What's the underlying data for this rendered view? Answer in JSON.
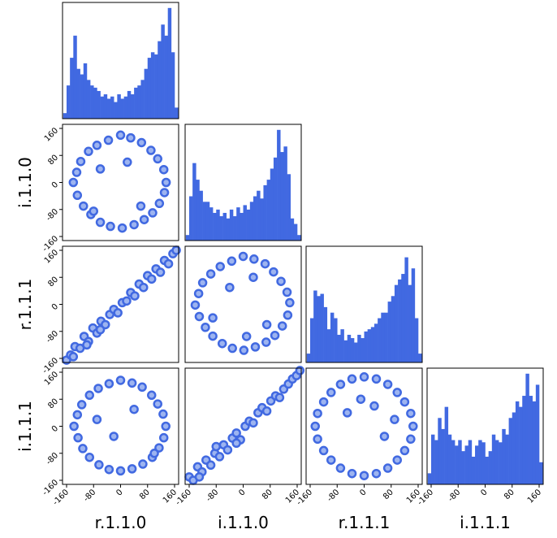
{
  "chart_data": [
    {
      "type": "histogram",
      "color": "#4169e1",
      "bins": [
        -170,
        -160,
        -150,
        -140,
        -130,
        -120,
        -110,
        -100,
        -90,
        -80,
        -70,
        -60,
        -50,
        -40,
        -30,
        -20,
        -10,
        0,
        10,
        20,
        30,
        40,
        50,
        60,
        70,
        80,
        90,
        100,
        110,
        120,
        130,
        140,
        150,
        160,
        170
      ],
      "values": [
        5,
        30,
        55,
        75,
        45,
        40,
        50,
        35,
        30,
        28,
        25,
        20,
        22,
        18,
        20,
        15,
        22,
        18,
        20,
        25,
        22,
        28,
        30,
        35,
        45,
        55,
        60,
        58,
        70,
        85,
        75,
        100,
        60,
        10
      ],
      "xlim": [
        -172,
        172
      ],
      "ylim": [
        0,
        105
      ]
    },
    {
      "type": "scatter",
      "color": "#4169e1",
      "ylabel": "i.1.1.0",
      "xlim": [
        -172,
        172
      ],
      "ylim": [
        -172,
        172
      ],
      "yticks": [
        -160,
        -80,
        0,
        80,
        160
      ],
      "x": [
        135,
        128,
        110,
        90,
        62,
        30,
        0,
        -36,
        -70,
        -95,
        -118,
        -130,
        -140,
        -128,
        -110,
        -88,
        -60,
        -30,
        5,
        40,
        70,
        95,
        115,
        130,
        -60,
        20,
        60,
        -80
      ],
      "y": [
        0,
        38,
        70,
        95,
        118,
        132,
        140,
        125,
        110,
        92,
        62,
        30,
        0,
        -38,
        -70,
        -95,
        -118,
        -130,
        -135,
        -125,
        -110,
        -90,
        -62,
        -30,
        40,
        60,
        -70,
        -85
      ]
    },
    {
      "type": "histogram",
      "color": "#4169e1",
      "bins": [
        -170,
        -160,
        -150,
        -140,
        -130,
        -120,
        -110,
        -100,
        -90,
        -80,
        -70,
        -60,
        -50,
        -40,
        -30,
        -20,
        -10,
        0,
        10,
        20,
        30,
        40,
        50,
        60,
        70,
        80,
        90,
        100,
        110,
        120,
        130,
        140,
        150,
        160,
        170
      ],
      "values": [
        5,
        40,
        70,
        55,
        45,
        35,
        35,
        30,
        25,
        28,
        22,
        25,
        20,
        28,
        22,
        30,
        25,
        32,
        28,
        35,
        40,
        45,
        38,
        50,
        55,
        65,
        75,
        100,
        80,
        85,
        60,
        20,
        15,
        5
      ],
      "xlim": [
        -172,
        172
      ],
      "ylim": [
        0,
        105
      ]
    },
    {
      "type": "scatter",
      "color": "#4169e1",
      "ylabel": "r.1.1.1",
      "xlim": [
        -172,
        172
      ],
      "ylim": [
        -172,
        172
      ],
      "yticks": [
        -160,
        -80,
        0,
        80,
        160
      ],
      "x": [
        -160,
        -148,
        -135,
        -120,
        -108,
        -95,
        -82,
        -70,
        -58,
        -45,
        -32,
        -20,
        -8,
        5,
        18,
        30,
        42,
        55,
        68,
        80,
        92,
        105,
        118,
        130,
        142,
        155,
        165,
        -140,
        -100,
        -60
      ],
      "y": [
        -165,
        -150,
        -125,
        -130,
        -95,
        -110,
        -70,
        -85,
        -50,
        -60,
        -30,
        -15,
        -25,
        5,
        10,
        35,
        25,
        60,
        50,
        85,
        75,
        105,
        95,
        130,
        120,
        150,
        160,
        -155,
        -120,
        -75
      ]
    },
    {
      "type": "scatter",
      "color": "#4169e1",
      "xlim": [
        -172,
        172
      ],
      "ylim": [
        -172,
        172
      ],
      "x": [
        138,
        130,
        112,
        90,
        65,
        32,
        0,
        -34,
        -68,
        -96,
        -120,
        -132,
        -142,
        -130,
        -112,
        -90,
        -62,
        -32,
        2,
        36,
        68,
        94,
        116,
        132,
        -40,
        30,
        70,
        -90,
        10
      ],
      "y": [
        5,
        36,
        68,
        96,
        120,
        134,
        142,
        128,
        112,
        90,
        64,
        32,
        -2,
        -36,
        -68,
        -94,
        -116,
        -130,
        -136,
        -126,
        -112,
        -92,
        -64,
        -32,
        50,
        80,
        -60,
        -40,
        -95
      ]
    },
    {
      "type": "histogram",
      "color": "#4169e1",
      "bins": [
        -170,
        -160,
        -150,
        -140,
        -130,
        -120,
        -110,
        -100,
        -90,
        -80,
        -70,
        -60,
        -50,
        -40,
        -30,
        -20,
        -10,
        0,
        10,
        20,
        30,
        40,
        50,
        60,
        70,
        80,
        90,
        100,
        110,
        120,
        130,
        140,
        150,
        160,
        170
      ],
      "values": [
        8,
        40,
        65,
        60,
        62,
        50,
        30,
        45,
        40,
        25,
        30,
        20,
        25,
        22,
        18,
        25,
        22,
        28,
        30,
        32,
        35,
        40,
        45,
        45,
        55,
        60,
        70,
        75,
        80,
        95,
        70,
        85,
        40,
        8
      ],
      "xlim": [
        -172,
        172
      ],
      "ylim": [
        0,
        105
      ]
    },
    {
      "type": "scatter",
      "color": "#4169e1",
      "ylabel": "i.1.1.1",
      "xlabel": "r.1.1.0",
      "xlim": [
        -172,
        172
      ],
      "ylim": [
        -172,
        172
      ],
      "xticks": [
        -160,
        -80,
        0,
        80,
        160
      ],
      "yticks": [
        -160,
        -80,
        0,
        80,
        160
      ],
      "x": [
        134,
        126,
        110,
        92,
        64,
        34,
        0,
        -34,
        -66,
        -92,
        -115,
        -128,
        -138,
        -126,
        -112,
        -92,
        -64,
        -34,
        0,
        34,
        66,
        94,
        114,
        128,
        -70,
        -20,
        40,
        100
      ],
      "y": [
        0,
        36,
        66,
        92,
        116,
        128,
        136,
        126,
        112,
        92,
        64,
        34,
        0,
        -34,
        -66,
        -92,
        -114,
        -128,
        -132,
        -126,
        -112,
        -92,
        -64,
        -34,
        20,
        -30,
        50,
        -80
      ]
    },
    {
      "type": "scatter",
      "color": "#4169e1",
      "xlabel": "i.1.1.0",
      "xlim": [
        -172,
        172
      ],
      "ylim": [
        -172,
        172
      ],
      "xticks": [
        -160,
        -80,
        0,
        80,
        160
      ],
      "x": [
        -160,
        -148,
        -135,
        -122,
        -110,
        -96,
        -84,
        -70,
        -58,
        -46,
        -32,
        -20,
        -8,
        6,
        18,
        30,
        44,
        56,
        70,
        82,
        96,
        108,
        120,
        134,
        146,
        158,
        168,
        -130,
        -80,
        -20
      ],
      "y": [
        -150,
        -160,
        -120,
        -135,
        -100,
        -115,
        -80,
        -90,
        -55,
        -70,
        -35,
        -20,
        -40,
        0,
        15,
        10,
        40,
        55,
        45,
        75,
        90,
        85,
        110,
        125,
        140,
        150,
        165,
        -150,
        -60,
        -50
      ]
    },
    {
      "type": "scatter",
      "color": "#4169e1",
      "xlabel": "r.1.1.1",
      "xlim": [
        -172,
        172
      ],
      "ylim": [
        -172,
        172
      ],
      "xticks": [
        -160,
        -80,
        0,
        80,
        160
      ],
      "x": [
        145,
        138,
        120,
        98,
        70,
        36,
        0,
        -36,
        -70,
        -98,
        -120,
        -138,
        -145,
        -138,
        -120,
        -98,
        -70,
        -36,
        0,
        36,
        70,
        98,
        120,
        138,
        -50,
        -10,
        30,
        60,
        90
      ],
      "y": [
        0,
        38,
        72,
        100,
        124,
        140,
        146,
        140,
        124,
        100,
        72,
        38,
        0,
        -38,
        -72,
        -100,
        -124,
        -140,
        -146,
        -140,
        -124,
        -100,
        -72,
        -38,
        40,
        80,
        60,
        -30,
        20
      ]
    },
    {
      "type": "histogram",
      "color": "#4169e1",
      "xlabel": "i.1.1.1",
      "bins": [
        -170,
        -160,
        -150,
        -140,
        -130,
        -120,
        -110,
        -100,
        -90,
        -80,
        -70,
        -60,
        -50,
        -40,
        -30,
        -20,
        -10,
        0,
        10,
        20,
        30,
        40,
        50,
        60,
        70,
        80,
        90,
        100,
        110,
        120,
        130,
        140,
        150,
        160,
        170
      ],
      "values": [
        10,
        45,
        40,
        60,
        50,
        70,
        45,
        40,
        35,
        40,
        30,
        35,
        40,
        25,
        35,
        40,
        38,
        25,
        30,
        45,
        40,
        38,
        50,
        45,
        60,
        65,
        75,
        70,
        80,
        100,
        80,
        75,
        90,
        20
      ],
      "xlim": [
        -172,
        172
      ],
      "ylim": [
        0,
        105
      ],
      "xticks": [
        -160,
        -80,
        0,
        80,
        160
      ]
    }
  ]
}
